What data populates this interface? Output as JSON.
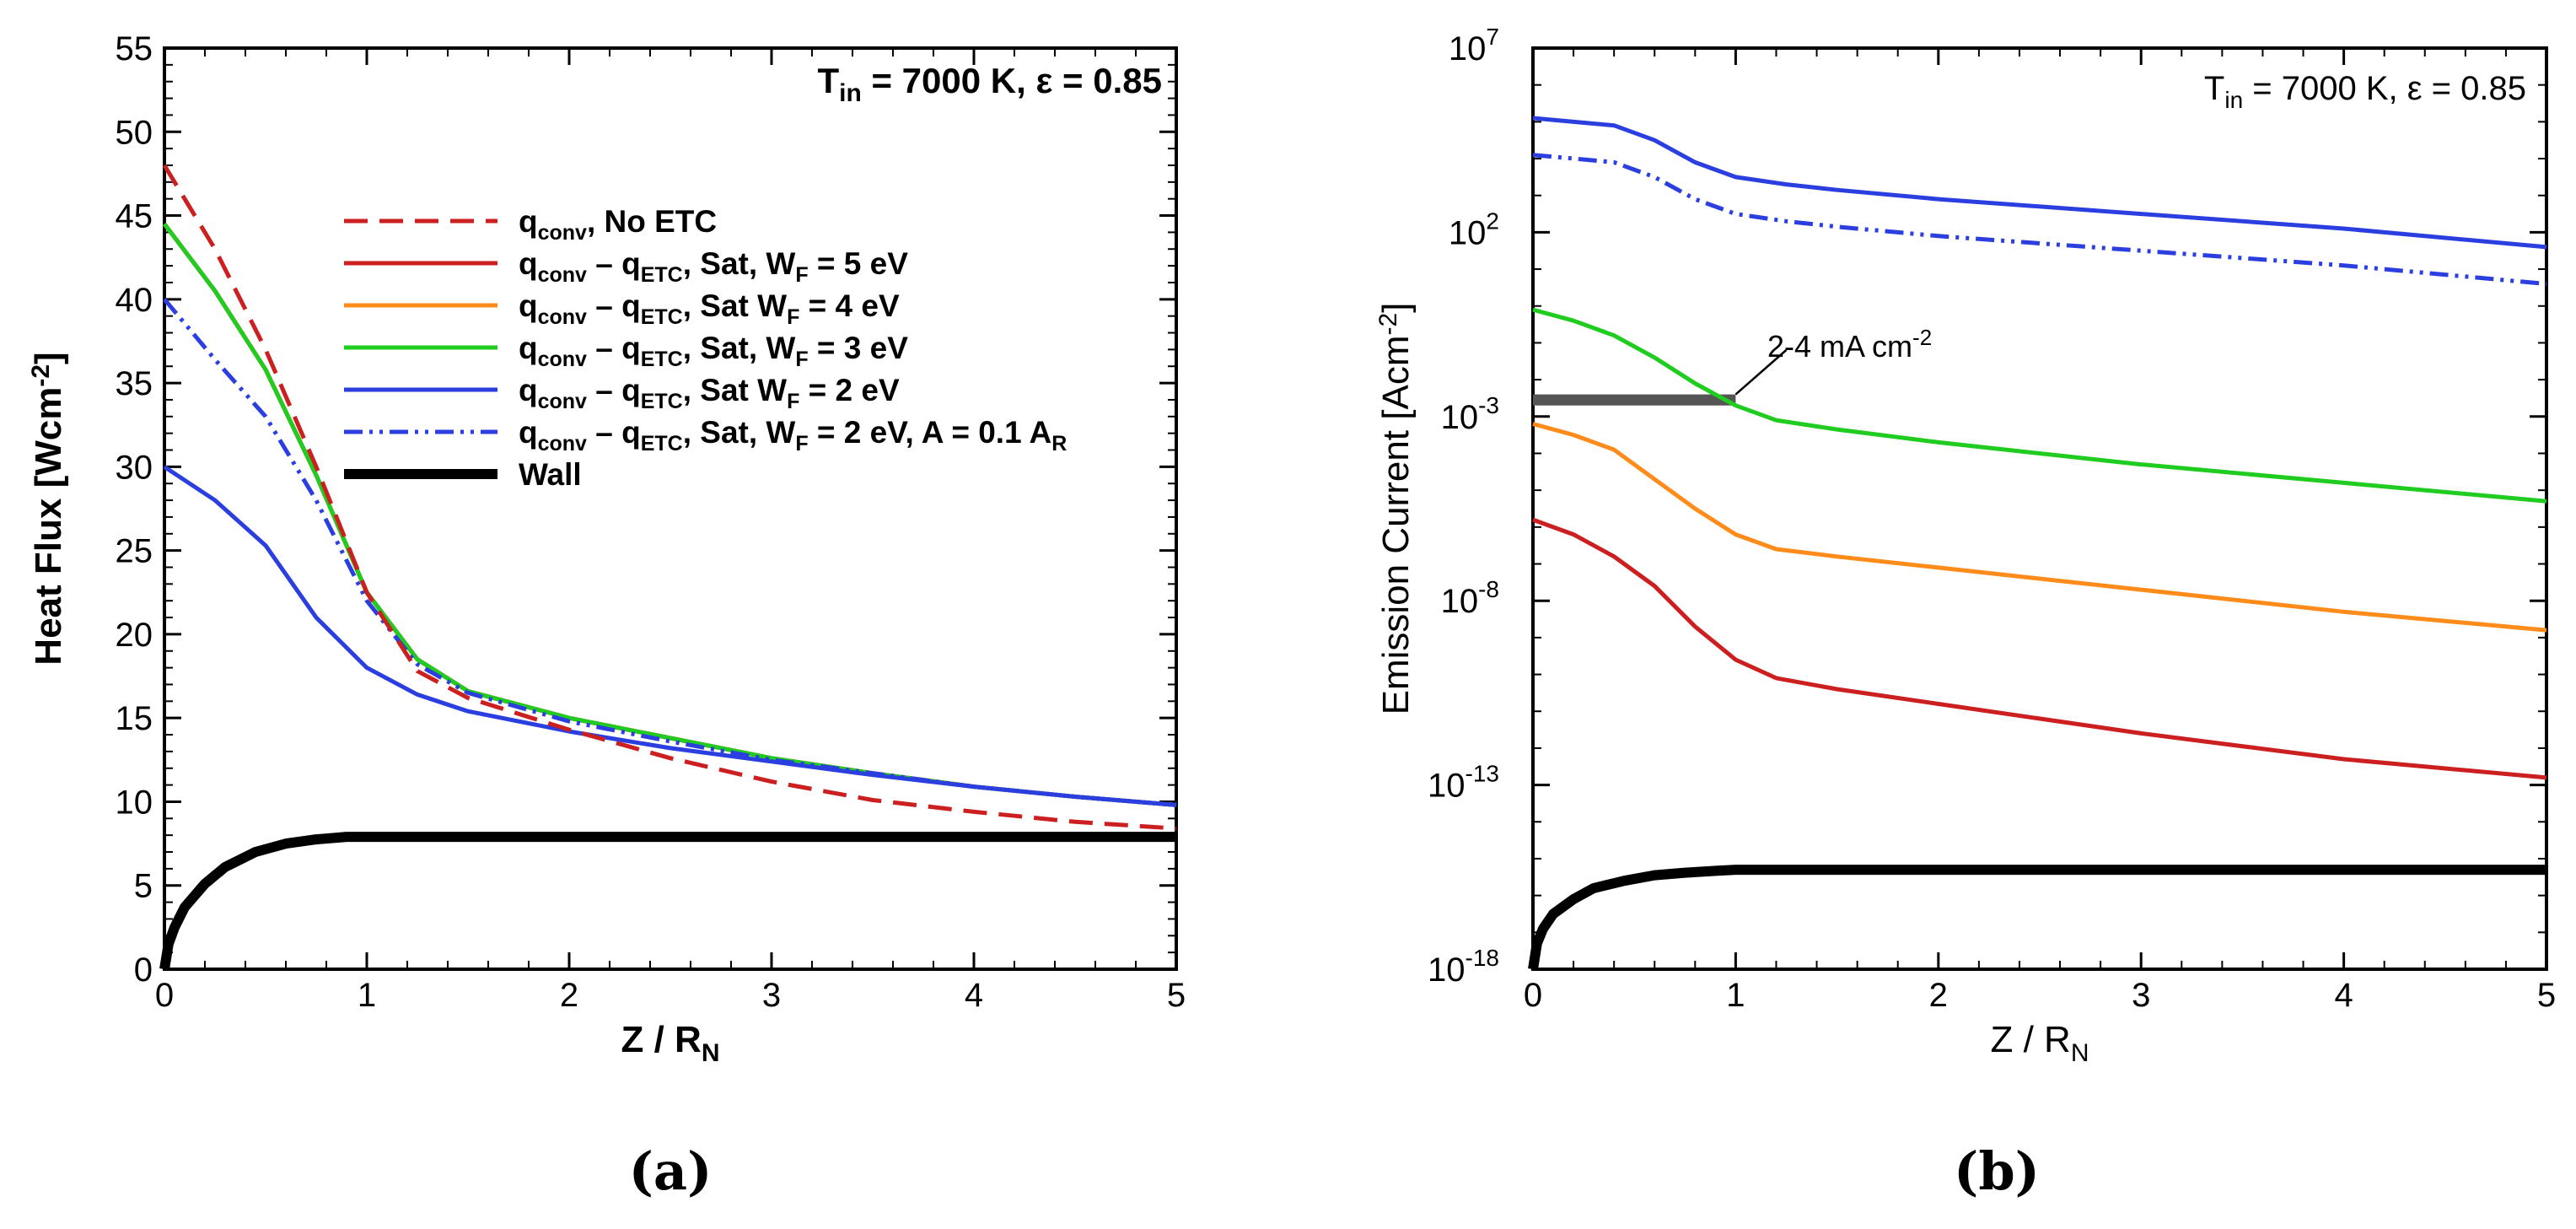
{
  "chart_data": [
    {
      "type": "line",
      "panel": "a",
      "caption": "(a)",
      "xlabel": "Z / R",
      "xlabel_sub": "N",
      "ylabel": "Heat Flux [Wcm",
      "ylabel_sup": "-2",
      "ylabel_end": "]",
      "xlim": [
        0,
        5
      ],
      "ylim": [
        0,
        55
      ],
      "xticks": [
        0,
        1,
        2,
        3,
        4,
        5
      ],
      "yticks": [
        0,
        5,
        10,
        15,
        20,
        25,
        30,
        35,
        40,
        45,
        50,
        55
      ],
      "xtick_labels": [
        "0",
        "1",
        "2",
        "3",
        "4",
        "5"
      ],
      "ytick_labels": [
        "0",
        "5",
        "10",
        "15",
        "20",
        "25",
        "30",
        "35",
        "40",
        "45",
        "50",
        "55"
      ],
      "annotation": {
        "main": "T",
        "sub": "in",
        "rest": " = 7000 K, ε = 0.85"
      },
      "legend_position": "upper-right",
      "series": [
        {
          "name": "q_conv, No ETC",
          "color": "#cc1f1f",
          "dash": "long-dash",
          "x": [
            0,
            0.25,
            0.5,
            0.75,
            1.0,
            1.25,
            1.5,
            2,
            2.5,
            3,
            3.5,
            4,
            4.5,
            5
          ],
          "y": [
            48,
            43,
            37,
            30,
            22.5,
            17.8,
            16.2,
            14.3,
            12.6,
            11.2,
            10.1,
            9.4,
            8.8,
            8.4
          ]
        },
        {
          "name": "q_conv - q_ETC, Sat, W_F = 5 eV",
          "color": "#cc1f1f",
          "dash": "solid",
          "x": [
            0,
            0.25,
            0.5,
            0.75,
            1.0,
            1.25,
            1.5,
            2,
            2.5,
            3,
            3.5,
            4,
            4.5,
            5
          ],
          "y": [
            44.5,
            40.5,
            35.8,
            29.5,
            22.5,
            18.5,
            16.6,
            15,
            13.8,
            12.6,
            11.7,
            10.9,
            10.3,
            9.8
          ]
        },
        {
          "name": "q_conv - q_ETC, Sat W_F = 4 eV",
          "color": "#ff8c1a",
          "dash": "solid",
          "x": [
            0,
            0.25,
            0.5,
            0.75,
            1.0,
            1.25,
            1.5,
            2,
            2.5,
            3,
            3.5,
            4,
            4.5,
            5
          ],
          "y": [
            44.5,
            40.5,
            35.8,
            29.5,
            22.5,
            18.5,
            16.6,
            15,
            13.8,
            12.6,
            11.7,
            10.9,
            10.3,
            9.8
          ]
        },
        {
          "name": "q_conv - q_ETC, Sat, W_F = 3 eV",
          "color": "#1fcc1f",
          "dash": "solid",
          "x": [
            0,
            0.25,
            0.5,
            0.75,
            1.0,
            1.25,
            1.5,
            2,
            2.5,
            3,
            3.5,
            4,
            4.5,
            5
          ],
          "y": [
            44.5,
            40.5,
            35.8,
            29.5,
            22.5,
            18.5,
            16.6,
            15,
            13.8,
            12.6,
            11.7,
            10.9,
            10.3,
            9.8
          ]
        },
        {
          "name": "q_conv - q_ETC, Sat W_F = 2 eV",
          "color": "#2b3fe0",
          "dash": "solid",
          "x": [
            0,
            0.25,
            0.5,
            0.75,
            1.0,
            1.25,
            1.5,
            2,
            2.5,
            3,
            3.5,
            4,
            4.5,
            5
          ],
          "y": [
            30,
            28,
            25.3,
            21,
            18,
            16.4,
            15.4,
            14.2,
            13.2,
            12.4,
            11.6,
            10.9,
            10.3,
            9.8
          ]
        },
        {
          "name": "q_conv - q_ETC, Sat, W_F = 2 eV, A = 0.1 A_R",
          "color": "#2b3fe0",
          "dash": "dash-dot-dot",
          "x": [
            0,
            0.25,
            0.5,
            0.75,
            1.0,
            1.25,
            1.5,
            2,
            2.5,
            3,
            3.5,
            4,
            4.5,
            5
          ],
          "y": [
            40,
            36.4,
            33,
            28,
            22,
            18.2,
            16.5,
            14.8,
            13.6,
            12.5,
            11.7,
            10.9,
            10.3,
            9.8
          ]
        },
        {
          "name": "Wall",
          "color": "#000000",
          "dash": "solid-thick",
          "x": [
            0,
            0.02,
            0.05,
            0.1,
            0.2,
            0.3,
            0.45,
            0.6,
            0.75,
            0.9,
            1.0,
            5
          ],
          "y": [
            0,
            1.5,
            2.5,
            3.7,
            5.1,
            6.1,
            7.0,
            7.5,
            7.75,
            7.9,
            7.9,
            7.9
          ]
        }
      ],
      "legend": [
        {
          "main": "q",
          "sub": "conv",
          "rest": ", No ETC"
        },
        {
          "main": "q",
          "sub": "conv",
          "mid": " – q",
          "sub2": "ETC",
          "rest": ", Sat, W",
          "sub3": "F",
          "rest2": " = 5 eV"
        },
        {
          "main": "q",
          "sub": "conv",
          "mid": " – q",
          "sub2": "ETC",
          "rest": ", Sat W",
          "sub3": "F",
          "rest2": " = 4 eV"
        },
        {
          "main": "q",
          "sub": "conv",
          "mid": " – q",
          "sub2": "ETC",
          "rest": ", Sat, W",
          "sub3": "F",
          "rest2": " = 3 eV"
        },
        {
          "main": "q",
          "sub": "conv",
          "mid": " – q",
          "sub2": "ETC",
          "rest": ", Sat W",
          "sub3": "F",
          "rest2": " = 2 eV"
        },
        {
          "main": "q",
          "sub": "conv",
          "mid": " – q",
          "sub2": "ETC",
          "rest": ", Sat, W",
          "sub3": "F",
          "rest2": " = 2 eV, A = 0.1 A",
          "sub4": "R"
        },
        {
          "main": "Wall"
        }
      ]
    },
    {
      "type": "line",
      "panel": "b",
      "caption": "(b)",
      "yscale": "log",
      "xlabel": "Z / R",
      "xlabel_sub": "N",
      "ylabel": "Emission Current [Acm",
      "ylabel_sup": "-2",
      "ylabel_end": "]",
      "xlim": [
        0,
        5
      ],
      "ylim_exp": [
        -18,
        7
      ],
      "xticks": [
        0,
        1,
        2,
        3,
        4,
        5
      ],
      "xtick_labels": [
        "0",
        "1",
        "2",
        "3",
        "4",
        "5"
      ],
      "yticks_exp": [
        -18,
        -13,
        -8,
        -3,
        2,
        7
      ],
      "ytick_labels": [
        {
          "base": "10",
          "exp": "-18"
        },
        {
          "base": "10",
          "exp": "-13"
        },
        {
          "base": "10",
          "exp": "-8"
        },
        {
          "base": "10",
          "exp": "-3"
        },
        {
          "base": "10",
          "exp": "2"
        },
        {
          "base": "10",
          "exp": "7"
        }
      ],
      "annotation": {
        "main": "T",
        "sub": "in",
        "rest": " = 7000 K, ε = 0.85"
      },
      "band_label": {
        "text": "2-4 mA cm",
        "sup": "-2"
      },
      "band": {
        "x": [
          0,
          1
        ],
        "log10_range": [
          -2.7,
          -2.4
        ]
      },
      "series": [
        {
          "name": "W_F = 2 eV",
          "color": "#2b3fe0",
          "dash": "solid",
          "x": [
            0,
            0.2,
            0.4,
            0.6,
            0.8,
            1.0,
            1.25,
            1.5,
            2,
            3,
            4,
            5
          ],
          "log10_y": [
            5.1,
            5.0,
            4.9,
            4.5,
            3.9,
            3.5,
            3.3,
            3.15,
            2.9,
            2.5,
            2.1,
            1.6
          ]
        },
        {
          "name": "W_F = 2 eV, A = 0.1 A_R",
          "color": "#2b3fe0",
          "dash": "dash-dot-dot",
          "x": [
            0,
            0.2,
            0.4,
            0.6,
            0.8,
            1.0,
            1.25,
            1.5,
            2,
            3,
            4,
            5
          ],
          "log10_y": [
            4.1,
            4.0,
            3.9,
            3.5,
            2.9,
            2.5,
            2.3,
            2.15,
            1.9,
            1.5,
            1.1,
            0.6
          ]
        },
        {
          "name": "W_F = 3 eV",
          "color": "#1fcc1f",
          "dash": "solid",
          "x": [
            0,
            0.2,
            0.4,
            0.6,
            0.8,
            1.0,
            1.2,
            1.5,
            2,
            3,
            4,
            5
          ],
          "log10_y": [
            -0.1,
            -0.4,
            -0.8,
            -1.4,
            -2.1,
            -2.7,
            -3.1,
            -3.35,
            -3.7,
            -4.3,
            -4.8,
            -5.3
          ]
        },
        {
          "name": "W_F = 4 eV",
          "color": "#ff8c1a",
          "dash": "solid",
          "x": [
            0,
            0.2,
            0.4,
            0.6,
            0.8,
            1.0,
            1.2,
            1.5,
            2,
            3,
            4,
            5
          ],
          "log10_y": [
            -3.2,
            -3.5,
            -3.9,
            -4.7,
            -5.5,
            -6.2,
            -6.6,
            -6.8,
            -7.1,
            -7.7,
            -8.3,
            -8.8
          ]
        },
        {
          "name": "W_F = 5 eV",
          "color": "#cc1f1f",
          "dash": "solid",
          "x": [
            0,
            0.2,
            0.4,
            0.6,
            0.8,
            1.0,
            1.2,
            1.5,
            2,
            3,
            4,
            5
          ],
          "log10_y": [
            -5.8,
            -6.2,
            -6.8,
            -7.6,
            -8.7,
            -9.6,
            -10.1,
            -10.4,
            -10.8,
            -11.6,
            -12.3,
            -12.8
          ]
        },
        {
          "name": "Wall",
          "color": "#000000",
          "dash": "solid-thick",
          "x": [
            0,
            0.02,
            0.05,
            0.1,
            0.2,
            0.3,
            0.45,
            0.6,
            0.75,
            0.9,
            1.0,
            5
          ],
          "log10_y": [
            -18,
            -17.3,
            -16.9,
            -16.5,
            -16.1,
            -15.8,
            -15.6,
            -15.45,
            -15.38,
            -15.33,
            -15.3,
            -15.3
          ]
        }
      ]
    }
  ]
}
